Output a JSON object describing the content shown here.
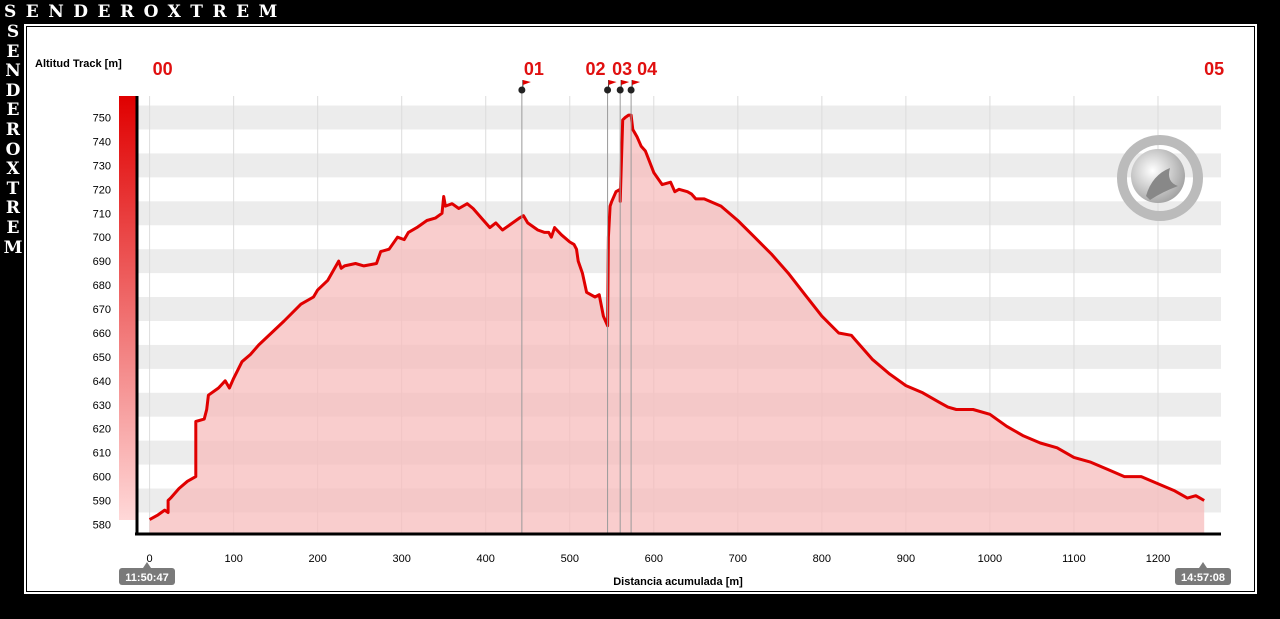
{
  "brand": {
    "top": "SENDEROXTREM",
    "side": [
      "S",
      "E",
      "N",
      "D",
      "E",
      "R",
      "O",
      "X",
      "T",
      "R",
      "E",
      "M"
    ]
  },
  "chart_data": {
    "type": "area",
    "title": "",
    "ylabel": "Altitud Track [m]",
    "xlabel": "Distancia acumulada [m]",
    "xlim": [
      -15,
      1275
    ],
    "ylim": [
      576,
      759
    ],
    "x_ticks": [
      0,
      100,
      200,
      300,
      400,
      500,
      600,
      700,
      800,
      900,
      1000,
      1100,
      1200
    ],
    "y_ticks": [
      580,
      590,
      600,
      610,
      620,
      630,
      640,
      650,
      660,
      670,
      680,
      690,
      700,
      710,
      720,
      730,
      740,
      750
    ],
    "start_time": "11:50:47",
    "end_time": "14:57:08",
    "grid": true,
    "line_color": "#e00000",
    "fill_color": "#f7bcbc",
    "waypoints": [
      {
        "label": "00",
        "x": 0,
        "marker": false
      },
      {
        "label": "01",
        "x": 443,
        "marker": true
      },
      {
        "label": "02",
        "x": 545,
        "marker": true
      },
      {
        "label": "03",
        "x": 560,
        "marker": true
      },
      {
        "label": "04",
        "x": 573,
        "marker": true
      },
      {
        "label": "05",
        "x": 1255,
        "marker": false
      }
    ],
    "series": [
      {
        "x": [
          0,
          10,
          18,
          22,
          22,
          25,
          35,
          45,
          55,
          55,
          65,
          68,
          70,
          82,
          90,
          95,
          100,
          110,
          120,
          130,
          145,
          160,
          180,
          195,
          200,
          212,
          225,
          228,
          232,
          245,
          255,
          270,
          275,
          285,
          295,
          303,
          308,
          318,
          330,
          340,
          348,
          350,
          352,
          360,
          368,
          378,
          385,
          395,
          405,
          412,
          420,
          432,
          440,
          445,
          450,
          462,
          470,
          475,
          478,
          482,
          490,
          500,
          505,
          508,
          510,
          515,
          520,
          525,
          530,
          535,
          540,
          545,
          546,
          548,
          550,
          555,
          560,
          560,
          563,
          566,
          570,
          573,
          575,
          580,
          585,
          590,
          600,
          610,
          620,
          625,
          630,
          640,
          645,
          650,
          660,
          680,
          700,
          720,
          740,
          760,
          780,
          800,
          820,
          835,
          840,
          860,
          880,
          900,
          920,
          940,
          950,
          960,
          980,
          1000,
          1020,
          1040,
          1060,
          1080,
          1100,
          1120,
          1140,
          1160,
          1180,
          1200,
          1220,
          1235,
          1245,
          1250,
          1255
        ],
        "y": [
          582,
          584,
          586,
          585,
          590,
          591,
          595,
          598,
          600,
          623,
          624,
          628,
          634,
          637,
          640,
          637,
          641,
          648,
          651,
          655,
          660,
          665,
          672,
          675,
          678,
          682,
          690,
          687,
          688,
          689,
          688,
          689,
          694,
          695,
          700,
          699,
          702,
          704,
          707,
          708,
          710,
          717,
          713,
          714,
          712,
          714,
          712,
          708,
          704,
          706,
          703,
          706,
          708,
          709,
          706,
          703,
          702,
          702,
          700,
          704,
          701,
          698,
          697,
          695,
          690,
          685,
          677,
          676,
          675,
          676,
          667,
          663,
          700,
          713,
          715,
          719,
          720,
          715,
          749,
          750,
          751,
          751,
          745,
          742,
          738,
          736,
          727,
          722,
          723,
          719,
          720,
          719,
          718,
          716,
          716,
          713,
          707,
          700,
          693,
          685,
          676,
          667,
          660,
          659,
          657,
          649,
          643,
          638,
          635,
          631,
          629,
          628,
          628,
          626,
          621,
          617,
          614,
          612,
          608,
          606,
          603,
          600,
          600,
          597,
          594,
          591,
          592,
          591,
          590
        ]
      }
    ]
  }
}
